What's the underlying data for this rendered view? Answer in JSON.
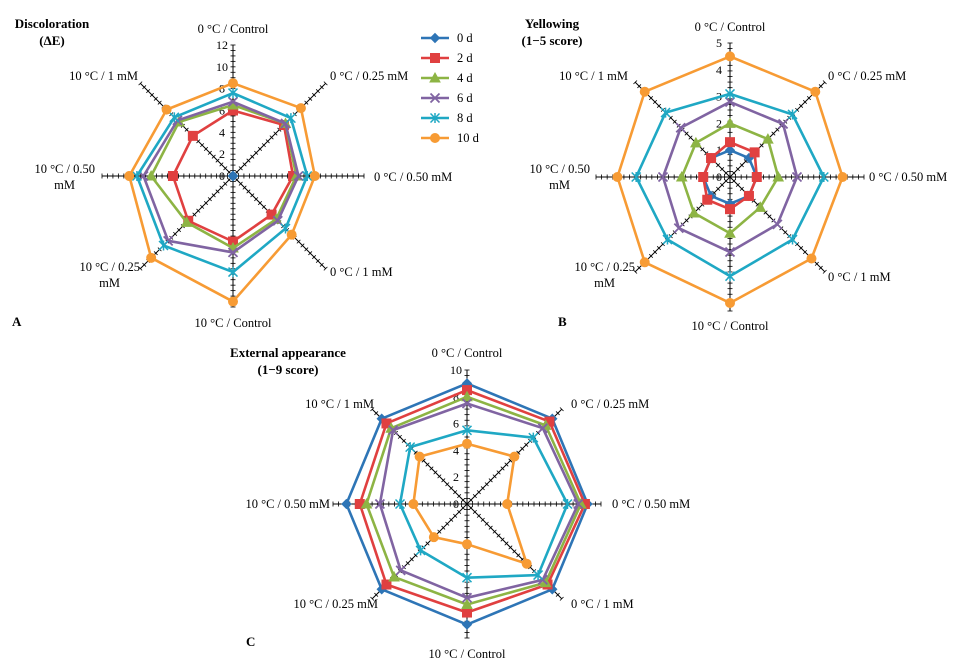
{
  "legend": {
    "entries": [
      "0 d",
      "2 d",
      "4 d",
      "6 d",
      "8 d",
      "10 d"
    ],
    "colors": [
      "#2e75b6",
      "#e04040",
      "#8db444",
      "#8064a2",
      "#1fa8c4",
      "#f79b34"
    ],
    "markers": [
      "diamond",
      "square",
      "triangle",
      "x",
      "star",
      "circle"
    ]
  },
  "chart_data": [
    {
      "type": "radar",
      "panel": "A",
      "title_lines": [
        "Discoloration",
        "(ΔE)"
      ],
      "axes": [
        "0 °C / Control",
        "0 °C / 0.25 mM",
        "0 °C / 0.50 mM",
        "0 °C / 1 mM",
        "10 °C / Control",
        "10 °C / 0.25 mM",
        "10 °C / 0.50 mM",
        "10 °C / 1 mM"
      ],
      "axis_label_lines": [
        [
          "0 °C / Control"
        ],
        [
          "0 °C / 0.25 mM"
        ],
        [
          "0 °C / 0.50 mM"
        ],
        [
          "0 °C / 1 mM"
        ],
        [
          "10 °C / Control"
        ],
        [
          "10 °C / 0.25",
          "mM"
        ],
        [
          "10 °C / 0.50",
          "mM"
        ],
        [
          "10 °C / 1 mM"
        ]
      ],
      "rlim": [
        0,
        12
      ],
      "ticks": [
        0,
        2,
        4,
        6,
        8,
        10,
        12
      ],
      "series": [
        {
          "name": "0 d",
          "values": [
            0,
            0,
            0,
            0,
            0,
            0,
            0,
            0
          ]
        },
        {
          "name": "2 d",
          "values": [
            6.0,
            6.6,
            5.5,
            5.0,
            6.0,
            5.8,
            5.5,
            5.2
          ]
        },
        {
          "name": "4 d",
          "values": [
            6.5,
            6.8,
            5.8,
            5.6,
            6.6,
            6.0,
            7.5,
            7.0
          ]
        },
        {
          "name": "6 d",
          "values": [
            6.8,
            6.8,
            6.0,
            5.8,
            7.0,
            8.4,
            8.2,
            7.2
          ]
        },
        {
          "name": "8 d",
          "values": [
            7.6,
            7.5,
            6.8,
            6.8,
            8.8,
            9.0,
            8.8,
            7.6
          ]
        },
        {
          "name": "10 d",
          "values": [
            8.5,
            8.8,
            7.5,
            7.6,
            11.5,
            10.6,
            9.5,
            8.6
          ]
        }
      ]
    },
    {
      "type": "radar",
      "panel": "B",
      "title_lines": [
        "Yellowing",
        "(1−5 score)"
      ],
      "axes": [
        "0 °C / Control",
        "0 °C / 0.25 mM",
        "0 °C / 0.50 mM",
        "0 °C / 1 mM",
        "10 °C / Control",
        "10 °C / 0.25 mM",
        "10 °C / 0.50 mM",
        "10 °C / 1 mM"
      ],
      "axis_label_lines": [
        [
          "0 °C / Control"
        ],
        [
          "0 °C / 0.25 mM"
        ],
        [
          "0 °C / 0.50 mM"
        ],
        [
          "0 °C / 1 mM"
        ],
        [
          "10 °C / Control"
        ],
        [
          "10 °C / 0.25",
          "mM"
        ],
        [
          "10 °C / 0.50",
          "mM"
        ],
        [
          "10 °C / 1 mM"
        ]
      ],
      "rlim": [
        0,
        5
      ],
      "ticks": [
        0,
        1,
        2,
        3,
        4,
        5
      ],
      "series": [
        {
          "name": "0 d",
          "values": [
            1.0,
            1.0,
            1.0,
            1.0,
            1.0,
            1.0,
            1.0,
            1.0
          ]
        },
        {
          "name": "2 d",
          "values": [
            1.3,
            1.3,
            1.0,
            1.0,
            1.2,
            1.2,
            1.0,
            1.0
          ]
        },
        {
          "name": "4 d",
          "values": [
            2.0,
            2.0,
            1.8,
            1.6,
            2.1,
            1.9,
            1.8,
            1.8
          ]
        },
        {
          "name": "6 d",
          "values": [
            2.8,
            2.8,
            2.5,
            2.5,
            2.8,
            2.7,
            2.5,
            2.6
          ]
        },
        {
          "name": "8 d",
          "values": [
            3.1,
            3.3,
            3.5,
            3.3,
            3.7,
            3.3,
            3.5,
            3.4
          ]
        },
        {
          "name": "10 d",
          "values": [
            4.5,
            4.5,
            4.2,
            4.3,
            4.7,
            4.5,
            4.2,
            4.5
          ]
        }
      ]
    },
    {
      "type": "radar",
      "panel": "C",
      "title_lines": [
        "External appearance",
        "(1−9 score)"
      ],
      "axes": [
        "0 °C / Control",
        "0 °C / 0.25 mM",
        "0 °C / 0.50 mM",
        "0 °C / 1 mM",
        "10 °C / Control",
        "10 °C / 0.25 mM",
        "10 °C / 0.50 mM",
        "10 °C / 1 mM"
      ],
      "axis_label_lines": [
        [
          "0 °C / Control"
        ],
        [
          "0 °C / 0.25 mM"
        ],
        [
          "0 °C / 0.50 mM"
        ],
        [
          "0 °C / 1 mM"
        ],
        [
          "10 °C / Control"
        ],
        [
          "10 °C / 0.25 mM"
        ],
        [
          "10 °C / 0.50 mM"
        ],
        [
          "10 °C / 1 mM"
        ]
      ],
      "rlim": [
        0,
        10
      ],
      "ticks": [
        0,
        2,
        4,
        6,
        8,
        10
      ],
      "series": [
        {
          "name": "0 d",
          "values": [
            9.0,
            9.0,
            9.0,
            9.0,
            9.0,
            9.0,
            9.0,
            9.0
          ]
        },
        {
          "name": "2 d",
          "values": [
            8.5,
            8.7,
            8.8,
            8.5,
            8.1,
            8.5,
            8.0,
            8.5
          ]
        },
        {
          "name": "4 d",
          "values": [
            8.0,
            8.3,
            8.5,
            8.3,
            7.5,
            7.7,
            7.5,
            8.0
          ]
        },
        {
          "name": "6 d",
          "values": [
            7.5,
            8.0,
            8.3,
            8.0,
            7.0,
            7.0,
            6.5,
            7.8
          ]
        },
        {
          "name": "8 d",
          "values": [
            5.5,
            7.0,
            7.5,
            7.5,
            5.5,
            4.9,
            5.0,
            6.0
          ]
        },
        {
          "name": "10 d",
          "values": [
            4.5,
            5.0,
            3.0,
            6.3,
            3.0,
            3.5,
            4.0,
            5.0
          ]
        }
      ]
    }
  ]
}
